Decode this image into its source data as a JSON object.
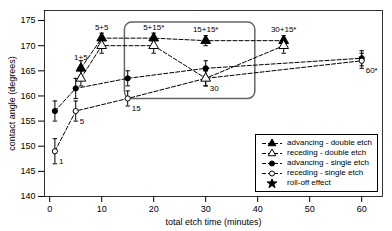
{
  "chart_data": {
    "type": "scatter",
    "xlabel": "total etch time (minutes)",
    "ylabel": "contact angle (degrees)",
    "xlim": [
      -1,
      64
    ],
    "ylim": [
      140,
      177
    ],
    "xticks": [
      0,
      10,
      20,
      30,
      40,
      50,
      60
    ],
    "yticks": [
      140,
      145,
      150,
      155,
      160,
      165,
      170,
      175
    ],
    "legend": "lower right",
    "series": [
      {
        "name": "advancing - single etch",
        "x": [
          1,
          5,
          15,
          30,
          60
        ],
        "values": [
          157.0,
          161.5,
          163.5,
          165.5,
          167.5
        ],
        "errors": [
          2.0,
          2.0,
          1.5,
          1.5,
          1.5
        ],
        "color": "#000000",
        "marker": "circle",
        "line_style": "dashed"
      },
      {
        "name": "receding - single etch",
        "x": [
          1,
          5,
          15,
          30,
          60
        ],
        "values": [
          149.0,
          157.0,
          159.5,
          163.5,
          167.0
        ],
        "errors": [
          2.5,
          2.0,
          1.5,
          1.5,
          1.5
        ],
        "color": "#000000",
        "marker": "circle-open",
        "line_style": "dashed",
        "point_labels": [
          "1",
          "5",
          "15",
          "30",
          "60*"
        ]
      },
      {
        "name": "advancing - double etch",
        "x": [
          6,
          10,
          20,
          30,
          45
        ],
        "values": [
          165.5,
          171.5,
          171.5,
          171.0,
          171.0
        ],
        "errors": [
          1.5,
          1.0,
          1.0,
          1.0,
          1.0
        ],
        "color": "#000000",
        "marker": "triangle",
        "line_style": "dashed",
        "point_labels": [
          "1+5",
          "5+5",
          "5+15*",
          "15+15*",
          "30+15*"
        ]
      },
      {
        "name": "receding - double etch",
        "x": [
          6,
          10,
          20,
          30,
          45
        ],
        "values": [
          163.5,
          170.0,
          170.0,
          163.5,
          170.0
        ],
        "errors": [
          1.5,
          1.5,
          1.5,
          1.5,
          1.5
        ],
        "color": "#000000",
        "marker": "triangle-open",
        "line_style": "dashed"
      }
    ],
    "legend_order": [
      "advancing - double etch",
      "receding - double etch",
      "advancing - single etch",
      "receding - single etch"
    ],
    "legend_extra": {
      "name": "roll-off effect",
      "marker": "star",
      "color": "#000000"
    },
    "highlight_box": {
      "x": 16.0,
      "y": 161.0,
      "width": 22.0,
      "height": 12.0
    }
  }
}
